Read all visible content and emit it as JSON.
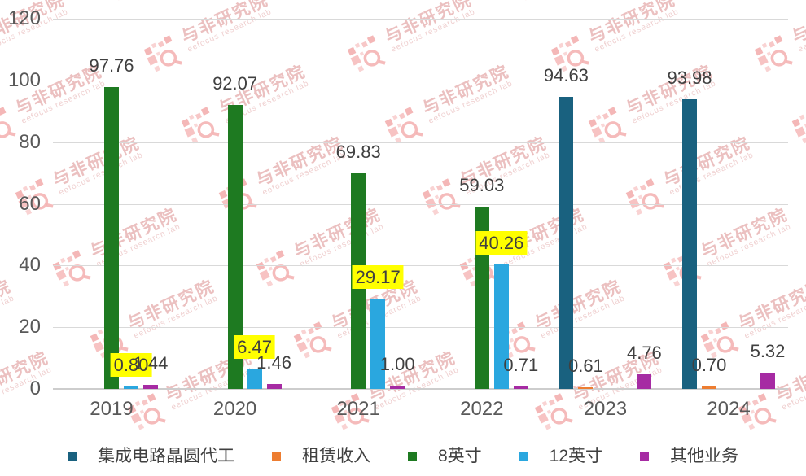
{
  "chart_data": {
    "type": "bar",
    "title": "",
    "xlabel": "",
    "ylabel": "",
    "categories": [
      "2019",
      "2020",
      "2021",
      "2022",
      "2023",
      "2024"
    ],
    "series": [
      {
        "name": "集成电路晶圆代工",
        "color": "#19617F",
        "values": [
          null,
          null,
          null,
          null,
          94.63,
          93.98
        ],
        "labels": [
          "",
          "",
          "",
          "",
          "94.63",
          "93.98"
        ],
        "highlight": false
      },
      {
        "name": "租赁收入",
        "color": "#ED7D31",
        "values": [
          null,
          null,
          null,
          null,
          0.61,
          0.7
        ],
        "labels": [
          "",
          "",
          "",
          "",
          "0.61",
          "0.70"
        ],
        "highlight": false
      },
      {
        "name": "8英寸",
        "color": "#1E7A21",
        "values": [
          97.76,
          92.07,
          69.83,
          59.03,
          null,
          null
        ],
        "labels": [
          "97.76",
          "92.07",
          "69.83",
          "59.03",
          "",
          ""
        ],
        "highlight": false
      },
      {
        "name": "12英寸",
        "color": "#2AA7DF",
        "values": [
          0.8,
          6.47,
          29.17,
          40.26,
          null,
          null
        ],
        "labels": [
          "0.80",
          "6.47",
          "29.17",
          "40.26",
          "",
          ""
        ],
        "highlight": true,
        "highlight_color": "#FFFF00"
      },
      {
        "name": "其他业务",
        "color": "#A62BA3",
        "values": [
          1.44,
          1.46,
          1.0,
          0.71,
          4.76,
          5.32
        ],
        "labels": [
          "1.44",
          "1.46",
          "1.00",
          "0.71",
          "4.76",
          "5.32"
        ],
        "highlight": false
      }
    ],
    "ylim": [
      0,
      120
    ],
    "yticks": [
      0,
      20,
      40,
      60,
      80,
      100,
      120
    ],
    "grid": true,
    "legend_position": "bottom",
    "colors": {
      "gridline": "#D9D9D9",
      "axis_line": "#CDCDCD",
      "tick_label": "#595959",
      "value_label": "#404040",
      "highlight_bg": "#FFFF00"
    }
  },
  "watermark": {
    "brand": "与非研究院",
    "subtitle": "eefocus research lab",
    "color": "#D98383"
  }
}
